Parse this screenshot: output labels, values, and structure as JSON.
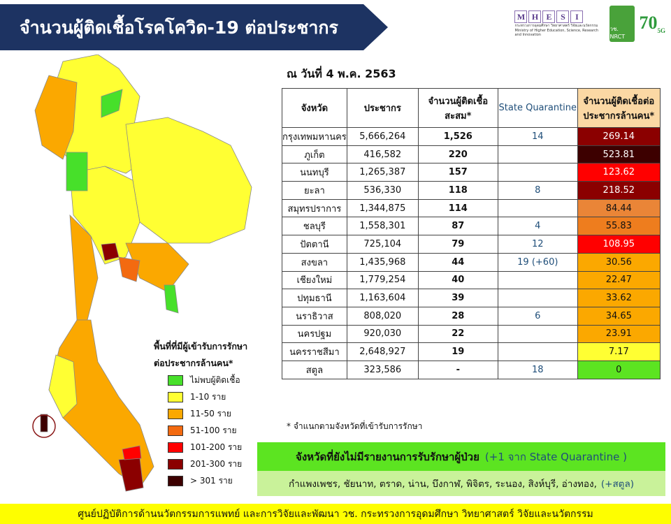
{
  "header": {
    "title": "จำนวนผู้ติดเชื้อโรคโควิด-19 ต่อประชากร"
  },
  "logos": {
    "mhesi_letters": [
      "M",
      "H",
      "E",
      "S",
      "I"
    ],
    "mhesi_sub": "กระทรวงการอุดมศึกษา วิทยาศาสตร์ วิจัยและนวัตกรรม Ministry of Higher Education, Science, Research and Innovation",
    "nrct": "วช. NRCT",
    "v70": "70",
    "v70_sub": "5G"
  },
  "date": "ณ วันที่ 4 พ.ค. 2563",
  "table": {
    "headers": [
      "จังหวัด",
      "ประชากร",
      "จำนวนผู้ติดเชื้อสะสม*",
      "State Quarantine",
      "จำนวนผู้ติดเชื้อต่อประชากรล้านคน*"
    ],
    "rows": [
      {
        "province": "กรุงเทพมหานคร",
        "population": "5,666,264",
        "cases": "1,526",
        "sq": "14",
        "per_million": "269.14",
        "color": "#8b0000",
        "text": "#fff"
      },
      {
        "province": "ภูเก็ต",
        "population": "416,582",
        "cases": "220",
        "sq": "",
        "per_million": "523.81",
        "color": "#3d0000",
        "text": "#fff"
      },
      {
        "province": "นนทบุรี",
        "population": "1,265,387",
        "cases": "157",
        "sq": "",
        "per_million": "123.62",
        "color": "#ff0000",
        "text": "#fff"
      },
      {
        "province": "ยะลา",
        "population": "536,330",
        "cases": "118",
        "sq": "8",
        "per_million": "218.52",
        "color": "#8b0000",
        "text": "#fff"
      },
      {
        "province": "สมุทรปราการ",
        "population": "1,344,875",
        "cases": "114",
        "sq": "",
        "per_million": "84.44",
        "color": "#ea8537",
        "text": "#111"
      },
      {
        "province": "ชลบุรี",
        "population": "1,558,301",
        "cases": "87",
        "sq": "4",
        "per_million": "55.83",
        "color": "#ee7d1e",
        "text": "#111"
      },
      {
        "province": "ปัตตานี",
        "population": "725,104",
        "cases": "79",
        "sq": "12",
        "per_million": "108.95",
        "color": "#ff0000",
        "text": "#fff"
      },
      {
        "province": "สงขลา",
        "population": "1,435,968",
        "cases": "44",
        "sq": "19 (+60)",
        "per_million": "30.56",
        "color": "#fba800",
        "text": "#111"
      },
      {
        "province": "เชียงใหม่",
        "population": "1,779,254",
        "cases": "40",
        "sq": "",
        "per_million": "22.47",
        "color": "#fba800",
        "text": "#111"
      },
      {
        "province": "ปทุมธานี",
        "population": "1,163,604",
        "cases": "39",
        "sq": "",
        "per_million": "33.62",
        "color": "#fba800",
        "text": "#111"
      },
      {
        "province": "นราธิวาส",
        "population": "808,020",
        "cases": "28",
        "sq": "6",
        "per_million": "34.65",
        "color": "#fba800",
        "text": "#111"
      },
      {
        "province": "นครปฐม",
        "population": "920,030",
        "cases": "22",
        "sq": "",
        "per_million": "23.91",
        "color": "#fba800",
        "text": "#111"
      },
      {
        "province": "นครราชสีมา",
        "population": "2,648,927",
        "cases": "19",
        "sq": "",
        "per_million": "7.17",
        "color": "#ffff33",
        "text": "#111"
      },
      {
        "province": "สตูล",
        "population": "323,586",
        "cases": "-",
        "sq": "18",
        "per_million": "0",
        "color": "#5ce421",
        "text": "#111"
      }
    ]
  },
  "note": "* จำแนกตามจังหวัดที่เข้ารับการรักษา",
  "no_report": {
    "title": "จังหวัดที่ยังไม่มีรายงานการรับรักษาผู้ป่วย",
    "title_extra": "(+1 จาก State Quarantine )",
    "list": "กำแพงเพชร, ชัยนาท, ตราด, น่าน, บึงกาฬ, พิจิตร, ระนอง, สิงห์บุรี, อ่างทอง,",
    "list_extra": "(+สตูล)"
  },
  "legend": {
    "title1": "พื้นที่ที่มีผู้เข้ารับการรักษา",
    "title2": "ต่อประชากรล้านคน*",
    "items": [
      {
        "label": "ไม่พบผู้ติดเชื้อ",
        "color": "#47e02a"
      },
      {
        "label": "1-10 ราย",
        "color": "#ffff33"
      },
      {
        "label": "11-50 ราย",
        "color": "#fba800"
      },
      {
        "label": "51-100 ราย",
        "color": "#f36a10"
      },
      {
        "label": "101-200 ราย",
        "color": "#ff0000"
      },
      {
        "label": "201-300 ราย",
        "color": "#8b0000"
      },
      {
        "label": "> 301 ราย",
        "color": "#3d0000"
      }
    ]
  },
  "footer": "ศูนย์ปฏิบัติการด้านนวัตกรรมการแพทย์ และการวิจัยและพัฒนา  วช.   กระทรวงการอุดมศึกษา วิทยาศาสตร์ วิจัยและนวัตกรรม"
}
